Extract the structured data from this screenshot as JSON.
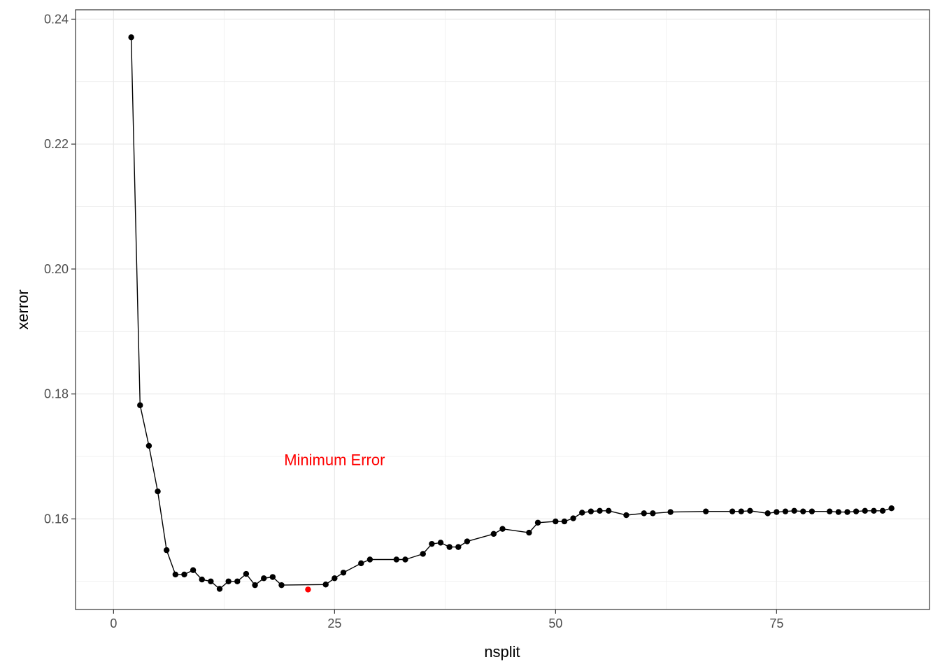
{
  "chart_data": {
    "type": "line",
    "xlabel": "nsplit",
    "ylabel": "xerror",
    "xlim": [
      -4.3,
      92.3
    ],
    "ylim": [
      0.1455,
      0.2415
    ],
    "x_ticks": [
      0,
      25,
      50,
      75
    ],
    "y_ticks": [
      0.16,
      0.18,
      0.2,
      0.22,
      0.24
    ],
    "x_tick_labels": [
      "0",
      "25",
      "50",
      "75"
    ],
    "y_tick_labels": [
      "0.16",
      "0.18",
      "0.20",
      "0.22",
      "0.24"
    ],
    "grid": true,
    "series": [
      {
        "color": "#000000",
        "x": [
          2,
          3,
          4,
          5,
          6,
          7,
          8,
          9,
          10,
          11,
          12,
          13,
          14,
          15,
          16,
          17,
          18,
          19,
          24,
          25,
          26,
          28,
          29,
          32,
          33,
          35,
          36,
          37,
          38,
          39,
          40,
          43,
          44,
          47,
          48,
          50,
          51,
          52,
          53,
          54,
          55,
          56,
          58,
          60,
          61,
          63,
          67,
          70,
          71,
          72,
          74,
          75,
          76,
          77,
          78,
          79,
          81,
          82,
          83,
          84,
          85,
          86,
          87,
          88
        ],
        "y": [
          0.2371,
          0.1782,
          0.1717,
          0.1644,
          0.155,
          0.1511,
          0.1511,
          0.1518,
          0.1503,
          0.15,
          0.1488,
          0.15,
          0.15,
          0.1512,
          0.1494,
          0.1505,
          0.1507,
          0.1494,
          0.1495,
          0.1505,
          0.1514,
          0.1529,
          0.1535,
          0.1535,
          0.1535,
          0.1544,
          0.156,
          0.1562,
          0.1555,
          0.1555,
          0.1564,
          0.1576,
          0.1584,
          0.1578,
          0.1594,
          0.1596,
          0.1596,
          0.1601,
          0.161,
          0.1612,
          0.1613,
          0.1613,
          0.1606,
          0.1609,
          0.1609,
          0.1611,
          0.1612,
          0.1612,
          0.1612,
          0.1613,
          0.1609,
          0.1611,
          0.1612,
          0.1613,
          0.1612,
          0.1612,
          0.1612,
          0.1611,
          0.1611,
          0.1612,
          0.1613,
          0.1613,
          0.1613,
          0.1617
        ]
      }
    ],
    "highlight_point": {
      "x": 22,
      "y": 0.1487,
      "color": "#ff0000"
    },
    "annotation": {
      "text": "Minimum Error",
      "x": 25,
      "y": 0.1695,
      "color": "#ff0000"
    }
  }
}
